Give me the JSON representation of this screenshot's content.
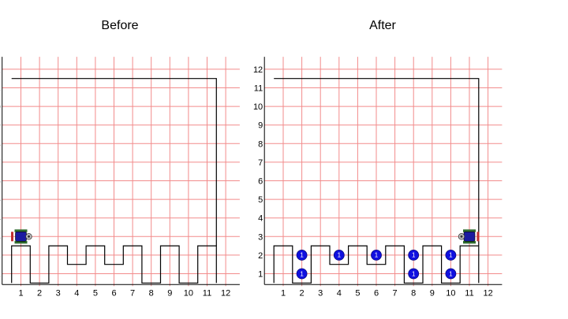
{
  "before": {
    "title": "Before",
    "robot": {
      "x": 1,
      "y": 3,
      "facing": "east"
    },
    "beepers": []
  },
  "after": {
    "title": "After",
    "robot": {
      "x": 11,
      "y": 3,
      "facing": "west"
    },
    "beepers": [
      {
        "x": 2,
        "y": 2,
        "count": "1"
      },
      {
        "x": 2,
        "y": 1,
        "count": "1"
      },
      {
        "x": 4,
        "y": 2,
        "count": "1"
      },
      {
        "x": 6,
        "y": 2,
        "count": "1"
      },
      {
        "x": 8,
        "y": 2,
        "count": "1"
      },
      {
        "x": 8,
        "y": 1,
        "count": "1"
      },
      {
        "x": 10,
        "y": 2,
        "count": "1"
      },
      {
        "x": 10,
        "y": 1,
        "count": "1"
      }
    ]
  },
  "grid": {
    "x_ticks": [
      "1",
      "2",
      "3",
      "4",
      "5",
      "6",
      "7",
      "8",
      "9",
      "10",
      "11",
      "12"
    ],
    "y_ticks": [
      "1",
      "2",
      "3",
      "4",
      "5",
      "6",
      "7",
      "8",
      "9",
      "10",
      "11",
      "12"
    ]
  },
  "terrain": {
    "note_units": "world coordinates (corner units)",
    "floor_profile": [
      [
        0.5,
        0.5
      ],
      [
        0.5,
        2.5
      ],
      [
        1.5,
        2.5
      ],
      [
        1.5,
        0.5
      ],
      [
        2.5,
        0.5
      ],
      [
        2.5,
        2.5
      ],
      [
        3.5,
        2.5
      ],
      [
        3.5,
        1.5
      ],
      [
        4.5,
        1.5
      ],
      [
        4.5,
        2.5
      ],
      [
        5.5,
        2.5
      ],
      [
        5.5,
        1.5
      ],
      [
        6.5,
        1.5
      ],
      [
        6.5,
        2.5
      ],
      [
        7.5,
        2.5
      ],
      [
        7.5,
        0.5
      ],
      [
        8.5,
        0.5
      ],
      [
        8.5,
        2.5
      ],
      [
        9.5,
        2.5
      ],
      [
        9.5,
        0.5
      ],
      [
        10.5,
        0.5
      ],
      [
        10.5,
        2.5
      ],
      [
        11.5,
        2.5
      ],
      [
        11.5,
        0.5
      ]
    ],
    "outer_wall": [
      [
        0.5,
        11.5
      ],
      [
        11.5,
        11.5
      ],
      [
        11.5,
        2.5
      ]
    ]
  },
  "colors": {
    "grid": "#f28b8b",
    "wall": "#000000",
    "beeper": "#1010e0",
    "robot_body": "#1a1aa0",
    "robot_track": "#2e6b2e",
    "robot_nose": "#c03030"
  }
}
